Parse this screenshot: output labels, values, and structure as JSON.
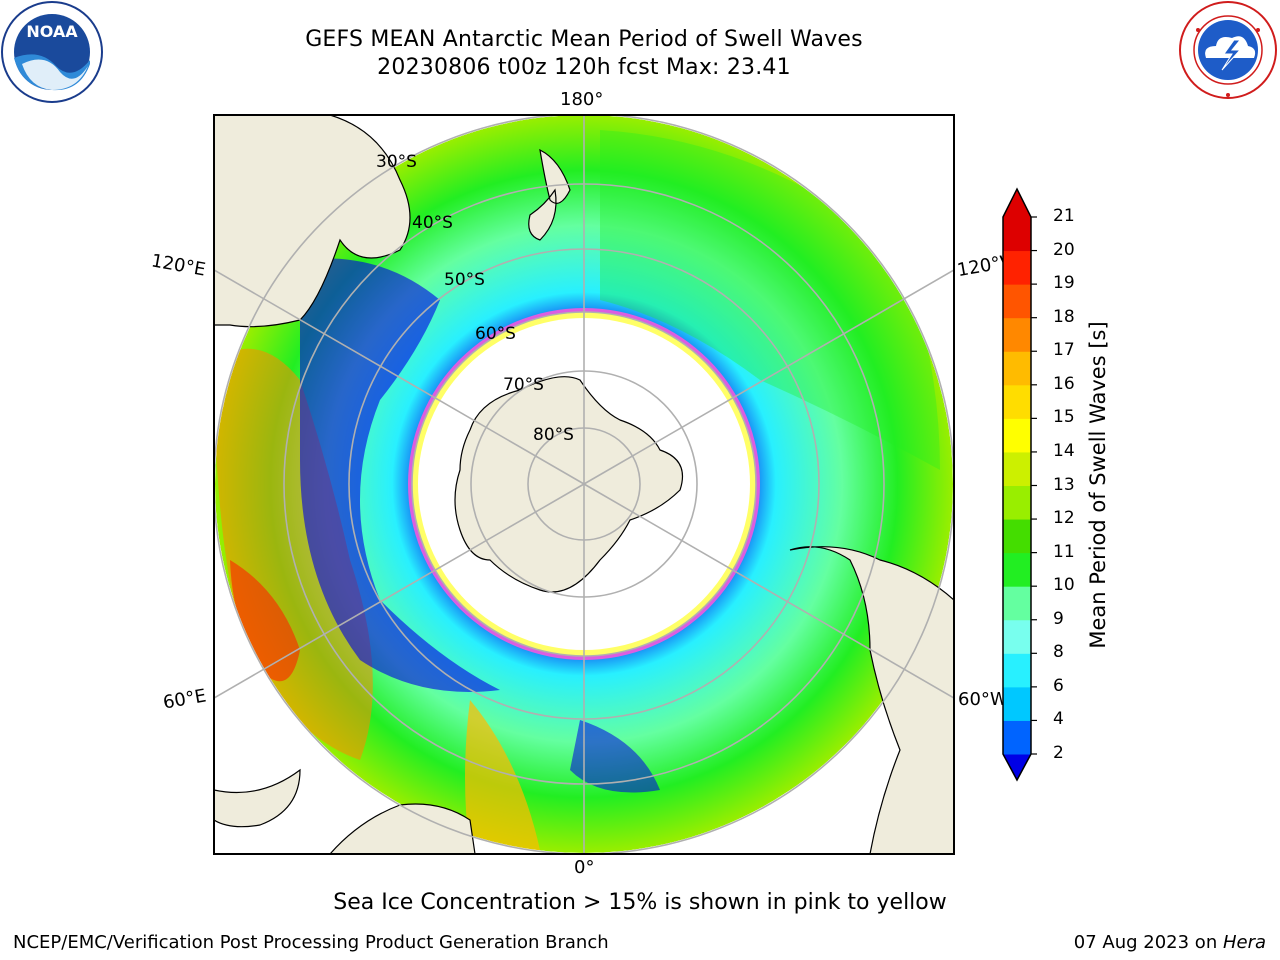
{
  "header": {
    "title_line1": "GEFS MEAN Antarctic Mean Period of Swell Waves",
    "title_line2": "20230806 t00z 120h fcst   Max: 23.41"
  },
  "logos": {
    "left": "NOAA",
    "right": "NATIONAL WEATHER SERVICE"
  },
  "map": {
    "projection": "south-polar-stereographic",
    "longitude_labels": {
      "top": "180°",
      "bottom": "0°",
      "left_upper": "120°E",
      "left_lower": "60°E",
      "right_upper": "120°W",
      "right_lower": "60°W"
    },
    "latitude_labels": [
      "30°S",
      "40°S",
      "50°S",
      "60°S",
      "70°S",
      "80°S"
    ],
    "colors": {
      "land": "#efecdc",
      "gridline": "#b0b0b0",
      "ice_edge": "#ff55dd"
    }
  },
  "colorbar": {
    "label": "Mean Period of Swell Waves [s]",
    "ticks": [
      "2",
      "4",
      "6",
      "8",
      "9",
      "10",
      "11",
      "12",
      "13",
      "14",
      "15",
      "16",
      "17",
      "18",
      "19",
      "20",
      "21"
    ],
    "colors": [
      "#0000e6",
      "#0064ff",
      "#00c8ff",
      "#28f0ff",
      "#78ffee",
      "#64ffa0",
      "#22ee22",
      "#44dd00",
      "#99ee00",
      "#ccf000",
      "#ffff00",
      "#ffdd00",
      "#ffbb00",
      "#ff8800",
      "#ff5500",
      "#ff2200",
      "#dd0000"
    ]
  },
  "note": "Sea Ice Concentration > 15% is shown in pink to yellow",
  "footer": {
    "left": "NCEP/EMC/Verification Post Processing Product Generation Branch",
    "date": "07 Aug 2023 on ",
    "machine": "Hera"
  }
}
